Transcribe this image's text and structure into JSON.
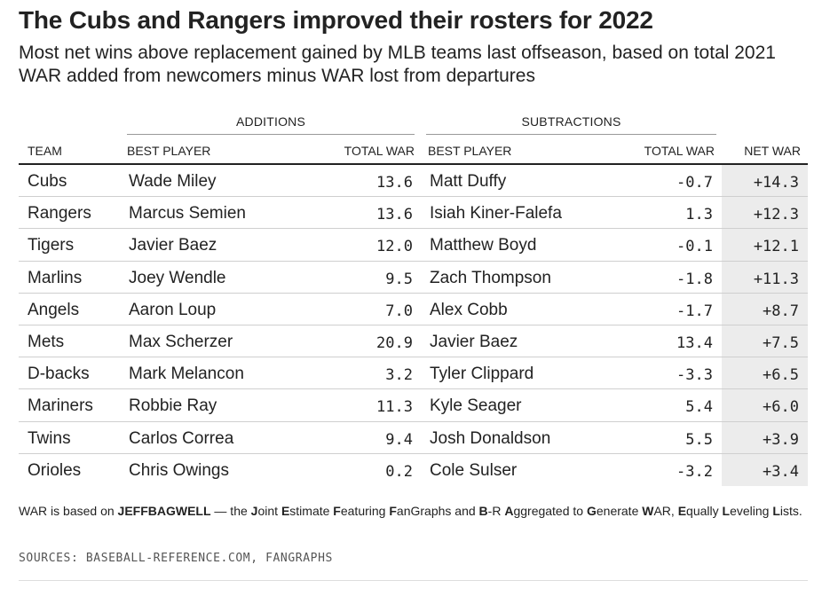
{
  "title": "The Cubs and Rangers improved their rosters for 2022",
  "subtitle": "Most net wins above replacement gained by MLB teams last offseason, based on total 2021 WAR added from newcomers minus WAR lost from departures",
  "groups": {
    "additions": "ADDITIONS",
    "subtractions": "SUBTRACTIONS"
  },
  "headers": {
    "team": "TEAM",
    "add_player": "BEST PLAYER",
    "add_war": "TOTAL WAR",
    "sub_player": "BEST PLAYER",
    "sub_war": "TOTAL WAR",
    "net_war": "NET WAR"
  },
  "rows": [
    {
      "team": "Cubs",
      "add_player": "Wade Miley",
      "add_war": "13.6",
      "sub_player": "Matt Duffy",
      "sub_war": "-0.7",
      "net_war": "+14.3"
    },
    {
      "team": "Rangers",
      "add_player": "Marcus Semien",
      "add_war": "13.6",
      "sub_player": "Isiah Kiner-Falefa",
      "sub_war": "1.3",
      "net_war": "+12.3"
    },
    {
      "team": "Tigers",
      "add_player": "Javier Baez",
      "add_war": "12.0",
      "sub_player": "Matthew Boyd",
      "sub_war": "-0.1",
      "net_war": "+12.1"
    },
    {
      "team": "Marlins",
      "add_player": "Joey Wendle",
      "add_war": "9.5",
      "sub_player": "Zach Thompson",
      "sub_war": "-1.8",
      "net_war": "+11.3"
    },
    {
      "team": "Angels",
      "add_player": "Aaron Loup",
      "add_war": "7.0",
      "sub_player": "Alex Cobb",
      "sub_war": "-1.7",
      "net_war": "+8.7"
    },
    {
      "team": "Mets",
      "add_player": "Max Scherzer",
      "add_war": "20.9",
      "sub_player": "Javier Baez",
      "sub_war": "13.4",
      "net_war": "+7.5"
    },
    {
      "team": "D-backs",
      "add_player": "Mark Melancon",
      "add_war": "3.2",
      "sub_player": "Tyler Clippard",
      "sub_war": "-3.3",
      "net_war": "+6.5"
    },
    {
      "team": "Mariners",
      "add_player": "Robbie Ray",
      "add_war": "11.3",
      "sub_player": "Kyle Seager",
      "sub_war": "5.4",
      "net_war": "+6.0"
    },
    {
      "team": "Twins",
      "add_player": "Carlos Correa",
      "add_war": "9.4",
      "sub_player": "Josh Donaldson",
      "sub_war": "5.5",
      "net_war": "+3.9"
    },
    {
      "team": "Orioles",
      "add_player": "Chris Owings",
      "add_war": "0.2",
      "sub_player": "Cole Sulser",
      "sub_war": "-3.2",
      "net_war": "+3.4"
    }
  ],
  "footnote": "WAR is based on JEFFBAGWELL — the Joint Estimate Featuring FanGraphs and B-R Aggregated to Generate WAR, Equally Leveling Lists.",
  "sources": "SOURCES: BASEBALL-REFERENCE.COM, FANGRAPHS"
}
